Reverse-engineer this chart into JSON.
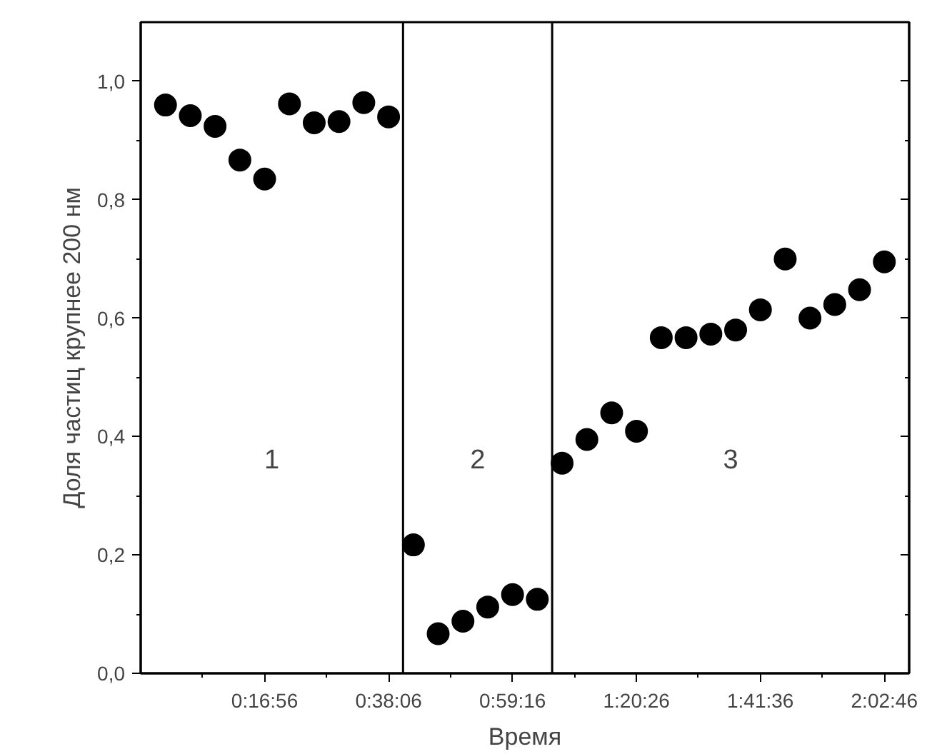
{
  "chart_data": {
    "type": "scatter",
    "xlabel": "Время",
    "ylabel": "Доля частиц крупнее 200 нм",
    "x": [
      0,
      0.0706,
      0.1411,
      0.2117,
      0.2822,
      0.3528,
      0.4233,
      0.4939,
      0.5644,
      0.635,
      0.7056,
      0.7761,
      0.8467,
      0.9172,
      0.9878,
      1.0583,
      1.1289,
      1.1994,
      1.27,
      1.3406,
      1.4111,
      1.4817,
      1.5522,
      1.6228,
      1.6933,
      1.7639,
      1.8344,
      1.905,
      1.9756,
      2.0461
    ],
    "series": [
      {
        "color": "#000000",
        "values": [
          0.96,
          0.942,
          0.924,
          0.867,
          0.835,
          0.962,
          0.93,
          0.932,
          0.964,
          0.94,
          0.217,
          0.067,
          0.088,
          0.112,
          0.133,
          0.125,
          0.355,
          0.395,
          0.44,
          0.409,
          0.567,
          0.567,
          0.573,
          0.58,
          0.614,
          0.7,
          0.6,
          0.623,
          0.648,
          0.695
        ]
      }
    ],
    "xlim": [
      -0.0706,
      2.1167
    ],
    "ylim": [
      0,
      1.1
    ],
    "xticks": [
      {
        "value": 0.2822,
        "label": "0:16:56"
      },
      {
        "value": 0.635,
        "label": "0:38:06"
      },
      {
        "value": 0.9878,
        "label": "0:59:16"
      },
      {
        "value": 1.3406,
        "label": "1:20:26"
      },
      {
        "value": 1.6933,
        "label": "1:41:36"
      },
      {
        "value": 2.0461,
        "label": "2:02:46"
      }
    ],
    "yticks": [
      {
        "value": 0,
        "label": "0,0"
      },
      {
        "value": 0.2,
        "label": "0,2"
      },
      {
        "value": 0.4,
        "label": "0,4"
      },
      {
        "value": 0.6,
        "label": "0,6"
      },
      {
        "value": 0.8,
        "label": "0,8"
      },
      {
        "value": 1.0,
        "label": "1,0"
      }
    ],
    "ref_lines": [
      {
        "axis": "x",
        "value": 0.6761,
        "label": null,
        "color": "#000000"
      },
      {
        "axis": "x",
        "value": 1.1006,
        "label": null,
        "color": "#000000"
      }
    ],
    "annotations": [
      "1",
      "2",
      "3"
    ],
    "marker": "circle",
    "grid": false
  }
}
